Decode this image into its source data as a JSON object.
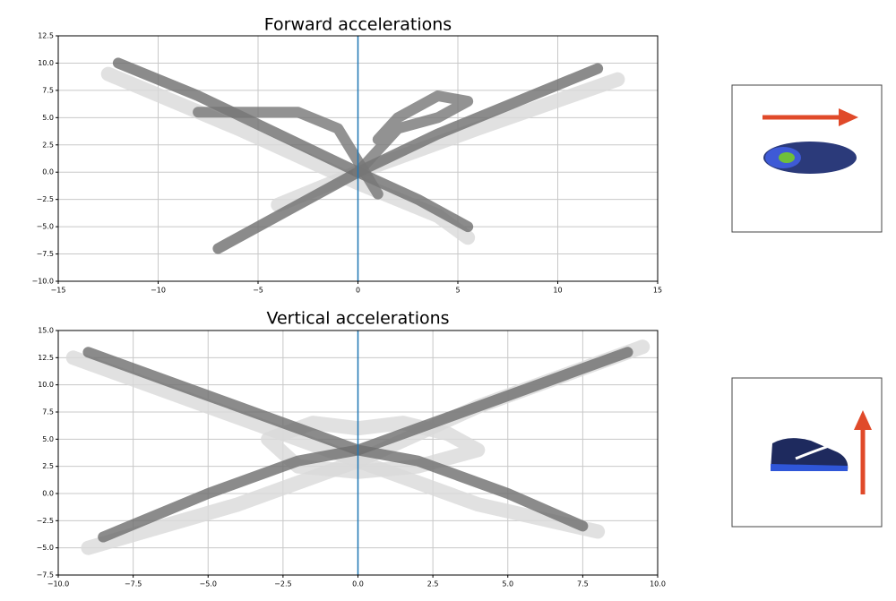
{
  "chart_data": [
    {
      "type": "line",
      "title": "Forward accelerations",
      "xlim": [
        -15,
        15
      ],
      "ylim": [
        -10,
        12.5
      ],
      "xticks": [
        {
          "value": -15,
          "label": "−15"
        },
        {
          "value": -10,
          "label": "−10"
        },
        {
          "value": -5,
          "label": "−5"
        },
        0,
        5,
        10,
        15
      ],
      "yticks": [
        {
          "value": -10,
          "label": "−10.0"
        },
        {
          "value": -7.5,
          "label": "−7.5"
        },
        {
          "value": -5,
          "label": "−5.0"
        },
        {
          "value": -2.5,
          "label": "−2.5"
        },
        {
          "value": 0,
          "label": "0.0"
        },
        2.5,
        {
          "value": 5,
          "label": "5.0"
        },
        7.5,
        {
          "value": 10,
          "label": "10.0"
        },
        12.5
      ],
      "grid": true,
      "vline": 0,
      "vline_color": "#1f77b4",
      "series": [
        {
          "color": "#d9d9d9",
          "x": [
            -12.5,
            -6,
            0,
            4,
            5.5
          ],
          "values": [
            9,
            4,
            -1,
            -4,
            -6
          ]
        },
        {
          "color": "#d9d9d9",
          "x": [
            13,
            6,
            0,
            -4
          ],
          "values": [
            8.5,
            4,
            0,
            -3
          ]
        },
        {
          "color": "#6e6e6e",
          "x": [
            -12,
            -8,
            -4,
            0,
            3,
            5.5
          ],
          "values": [
            10,
            7,
            3.5,
            0,
            -2.5,
            -5
          ]
        },
        {
          "color": "#6e6e6e",
          "x": [
            12,
            8,
            4,
            0,
            -3,
            -7
          ],
          "values": [
            9.5,
            6.5,
            3.5,
            0,
            -3,
            -7
          ]
        },
        {
          "color": "#777777",
          "x": [
            -8,
            -5,
            -3,
            -1,
            0,
            1
          ],
          "values": [
            5.5,
            5.5,
            5.5,
            4,
            1,
            -2
          ]
        },
        {
          "color": "#777777",
          "x": [
            1,
            2,
            4,
            5.5,
            4,
            2,
            0
          ],
          "values": [
            3,
            5,
            7,
            6.5,
            5,
            4,
            0
          ]
        }
      ]
    },
    {
      "type": "line",
      "title": "Vertical accelerations",
      "xlim": [
        -10,
        10
      ],
      "ylim": [
        -7.5,
        15
      ],
      "xticks": [
        {
          "value": -10,
          "label": "−10.0"
        },
        {
          "value": -7.5,
          "label": "−7.5"
        },
        {
          "value": -5,
          "label": "−5.0"
        },
        {
          "value": -2.5,
          "label": "−2.5"
        },
        {
          "value": 0,
          "label": "0.0"
        },
        2.5,
        {
          "value": 5,
          "label": "5.0"
        },
        7.5,
        {
          "value": 10,
          "label": "10.0"
        }
      ],
      "yticks": [
        {
          "value": -7.5,
          "label": "−7.5"
        },
        {
          "value": -5,
          "label": "−5.0"
        },
        {
          "value": -2.5,
          "label": "−2.5"
        },
        {
          "value": 0,
          "label": "0.0"
        },
        2.5,
        {
          "value": 5,
          "label": "5.0"
        },
        7.5,
        {
          "value": 10,
          "label": "10.0"
        },
        12.5,
        {
          "value": 15,
          "label": "15.0"
        }
      ],
      "grid": true,
      "vline": 0,
      "vline_color": "#1f77b4",
      "series": [
        {
          "color": "#d9d9d9",
          "x": [
            -9.5,
            -4,
            0,
            4,
            8
          ],
          "values": [
            12.5,
            7,
            3,
            -1,
            -3.5
          ]
        },
        {
          "color": "#d9d9d9",
          "x": [
            9.5,
            4,
            0,
            -4,
            -9
          ],
          "values": [
            13.5,
            8,
            3,
            -1,
            -5
          ]
        },
        {
          "color": "#d9d9d9",
          "x": [
            -3,
            -1.5,
            0,
            1.5,
            3,
            4,
            2,
            0,
            -2,
            -3
          ],
          "values": [
            5,
            6.5,
            6,
            6.5,
            5.5,
            4,
            2.5,
            2,
            2.5,
            5
          ]
        },
        {
          "color": "#6e6e6e",
          "x": [
            -9,
            -5,
            -2,
            0,
            2,
            5,
            7.5
          ],
          "values": [
            13,
            9,
            6,
            4,
            3,
            0,
            -3
          ]
        },
        {
          "color": "#6e6e6e",
          "x": [
            9,
            5,
            2,
            0,
            -2,
            -5,
            -8.5
          ],
          "values": [
            13,
            9,
            6,
            4,
            3,
            0,
            -4
          ]
        }
      ]
    }
  ]
}
